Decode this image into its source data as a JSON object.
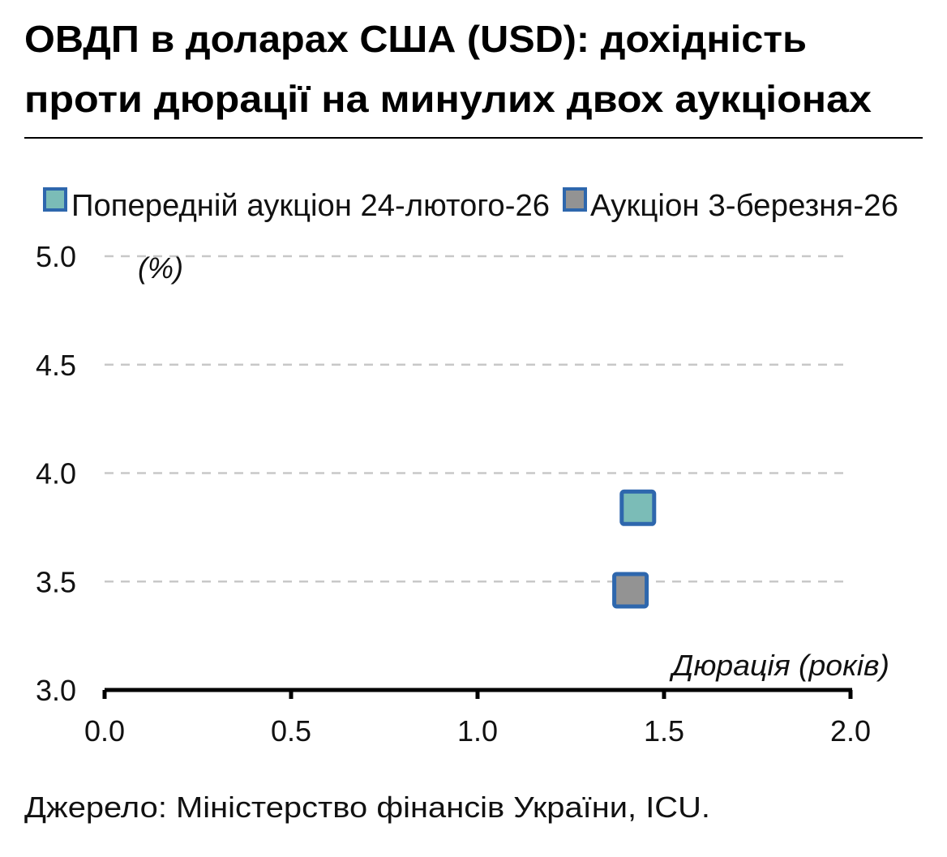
{
  "title_line1": "ОВДП в доларах США (USD): дохідність",
  "title_line2": "проти дюрації на минулих двох аукціонах",
  "source": "Джерело: Міністерство фінансів України, ICU.",
  "chart_data": {
    "type": "scatter",
    "title": "ОВДП в доларах США (USD): дохідність проти дюрації на минулих двох аукціонах",
    "xlabel": "Дюрація (років)",
    "ylabel": "(%)",
    "xlim": [
      0,
      2
    ],
    "ylim": [
      3,
      5
    ],
    "x_ticks": [
      "0.0",
      "0.5",
      "1.0",
      "1.5",
      "2.0"
    ],
    "y_ticks": [
      "3.0",
      "3.5",
      "4.0",
      "4.5",
      "5.0"
    ],
    "grid": "horizontal dashed",
    "legend_position": "top",
    "series": [
      {
        "name": "Попередній аукціон 24-лютого-26",
        "color": "#7bbcb7",
        "edge": "#2e67ad",
        "points": [
          {
            "x": 1.43,
            "y": 3.84
          }
        ]
      },
      {
        "name": "Аукціон 3-березня-26",
        "color": "#939393",
        "edge": "#2e67ad",
        "points": [
          {
            "x": 1.41,
            "y": 3.46
          }
        ]
      }
    ]
  }
}
